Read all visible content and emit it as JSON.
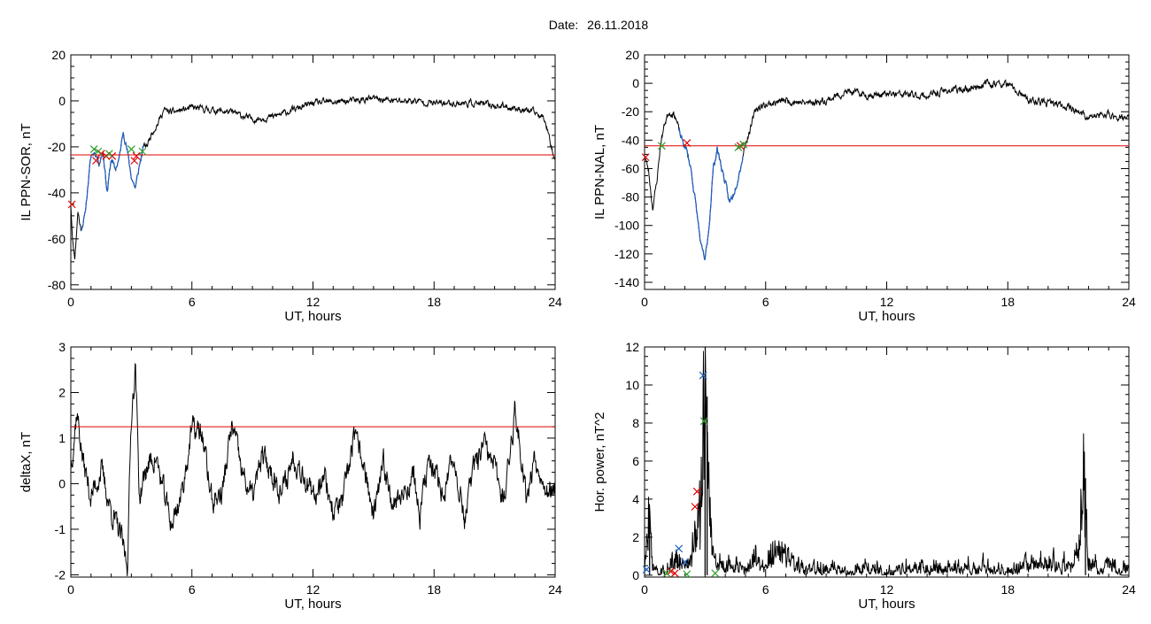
{
  "header": {
    "date_label": "Date:",
    "date_value": "26.11.2018"
  },
  "colors": {
    "trace": "#000000",
    "active_trace": "#1f5fbf",
    "threshold": "#e00000",
    "marker_red": "#e00000",
    "marker_green": "#2ca02c",
    "marker_blue": "#1f5fbf"
  },
  "chart_data": [
    {
      "id": "sor",
      "type": "line",
      "xlabel": "UT, hours",
      "ylabel": "IL PPN-SOR, nT",
      "xlim": [
        0,
        24
      ],
      "ylim": [
        -82,
        20
      ],
      "xticks": [
        0,
        6,
        12,
        18,
        24
      ],
      "yticks": [
        -80,
        -60,
        -40,
        -20,
        0,
        20
      ],
      "threshold": -23.5,
      "trace_keypoints": [
        [
          0,
          -45
        ],
        [
          0.1,
          -62
        ],
        [
          0.2,
          -68
        ],
        [
          0.35,
          -48
        ],
        [
          0.5,
          -56
        ],
        [
          0.7,
          -50
        ],
        [
          0.9,
          -32
        ],
        [
          1.0,
          -24
        ],
        [
          1.2,
          -22
        ],
        [
          1.4,
          -27
        ],
        [
          1.6,
          -22
        ],
        [
          1.8,
          -40
        ],
        [
          2.0,
          -25
        ],
        [
          2.2,
          -30
        ],
        [
          2.4,
          -25
        ],
        [
          2.6,
          -13
        ],
        [
          2.8,
          -22
        ],
        [
          3.0,
          -33
        ],
        [
          3.2,
          -38
        ],
        [
          3.4,
          -28
        ],
        [
          3.6,
          -20
        ],
        [
          3.8,
          -19
        ],
        [
          4.0,
          -14
        ],
        [
          4.3,
          -10
        ],
        [
          4.6,
          -4
        ],
        [
          5.0,
          -5
        ],
        [
          6.0,
          -3
        ],
        [
          7.0,
          -4
        ],
        [
          8.0,
          -5
        ],
        [
          9.0,
          -8
        ],
        [
          10.0,
          -7
        ],
        [
          11.0,
          -4
        ],
        [
          12.0,
          -1
        ],
        [
          13.0,
          -0.5
        ],
        [
          14.0,
          0
        ],
        [
          15.0,
          1
        ],
        [
          16.0,
          0
        ],
        [
          17.0,
          0
        ],
        [
          18.0,
          -1
        ],
        [
          19.0,
          -1
        ],
        [
          20.0,
          -1
        ],
        [
          21.0,
          -2
        ],
        [
          22.0,
          -3
        ],
        [
          23.0,
          -5
        ],
        [
          23.5,
          -8
        ],
        [
          24.0,
          -26
        ]
      ],
      "active_range": [
        0.5,
        3.6
      ],
      "markers": [
        {
          "x": 1.25,
          "y": -26,
          "color": "red"
        },
        {
          "x": 1.5,
          "y": -23,
          "color": "red"
        },
        {
          "x": 1.75,
          "y": -24,
          "color": "red"
        },
        {
          "x": 2.05,
          "y": -24,
          "color": "red"
        },
        {
          "x": 3.15,
          "y": -26,
          "color": "red"
        },
        {
          "x": 3.25,
          "y": -24,
          "color": "red"
        },
        {
          "x": 1.15,
          "y": -21,
          "color": "green"
        },
        {
          "x": 1.35,
          "y": -22,
          "color": "green"
        },
        {
          "x": 1.9,
          "y": -23,
          "color": "green"
        },
        {
          "x": 3.0,
          "y": -21,
          "color": "green"
        },
        {
          "x": 3.55,
          "y": -22,
          "color": "green"
        },
        {
          "x": 0.05,
          "y": -45,
          "color": "red"
        }
      ],
      "seed": 11,
      "noise": 1.1
    },
    {
      "id": "nal",
      "type": "line",
      "xlabel": "UT, hours",
      "ylabel": "IL PPN-NAL, nT",
      "xlim": [
        0,
        24
      ],
      "ylim": [
        -145,
        20
      ],
      "xticks": [
        0,
        6,
        12,
        18,
        24
      ],
      "yticks": [
        -140,
        -120,
        -100,
        -80,
        -60,
        -40,
        -20,
        0,
        20
      ],
      "threshold": -44,
      "trace_keypoints": [
        [
          0,
          -50
        ],
        [
          0.2,
          -62
        ],
        [
          0.4,
          -88
        ],
        [
          0.6,
          -70
        ],
        [
          0.8,
          -42
        ],
        [
          1.0,
          -28
        ],
        [
          1.2,
          -20
        ],
        [
          1.5,
          -22
        ],
        [
          1.8,
          -38
        ],
        [
          2.1,
          -48
        ],
        [
          2.3,
          -60
        ],
        [
          2.6,
          -92
        ],
        [
          2.8,
          -115
        ],
        [
          3.0,
          -125
        ],
        [
          3.2,
          -100
        ],
        [
          3.4,
          -60
        ],
        [
          3.6,
          -46
        ],
        [
          3.8,
          -58
        ],
        [
          4.0,
          -70
        ],
        [
          4.2,
          -84
        ],
        [
          4.4,
          -78
        ],
        [
          4.6,
          -68
        ],
        [
          4.8,
          -56
        ],
        [
          5.0,
          -42
        ],
        [
          5.3,
          -30
        ],
        [
          5.5,
          -18
        ],
        [
          6.0,
          -15
        ],
        [
          7.0,
          -12
        ],
        [
          8.0,
          -14
        ],
        [
          9.0,
          -12
        ],
        [
          10.0,
          -6
        ],
        [
          11.0,
          -8
        ],
        [
          12.0,
          -8
        ],
        [
          13.0,
          -8
        ],
        [
          14.0,
          -9
        ],
        [
          15.0,
          -5
        ],
        [
          16.0,
          -4
        ],
        [
          17.0,
          0
        ],
        [
          18.0,
          -1
        ],
        [
          19.0,
          -12
        ],
        [
          20.0,
          -14
        ],
        [
          21.0,
          -16
        ],
        [
          22.0,
          -24
        ],
        [
          23.0,
          -22
        ],
        [
          24.0,
          -25
        ]
      ],
      "active_range": [
        1.7,
        4.9
      ],
      "markers": [
        {
          "x": 2.1,
          "y": -42,
          "color": "red"
        },
        {
          "x": 4.75,
          "y": -44,
          "color": "red"
        },
        {
          "x": 0.05,
          "y": -52,
          "color": "red"
        },
        {
          "x": 0.85,
          "y": -44,
          "color": "green"
        },
        {
          "x": 4.65,
          "y": -45,
          "color": "green"
        },
        {
          "x": 4.9,
          "y": -43,
          "color": "green"
        }
      ],
      "seed": 23,
      "noise": 2.0
    },
    {
      "id": "deltax",
      "type": "line",
      "xlabel": "UT, hours",
      "ylabel": "deltaX, nT",
      "xlim": [
        0,
        24
      ],
      "ylim": [
        -2.05,
        3.0
      ],
      "xticks": [
        0,
        6,
        12,
        18,
        24
      ],
      "yticks": [
        -2,
        -1,
        0,
        1,
        2,
        3
      ],
      "threshold": 1.25,
      "trace_keypoints": [
        [
          0,
          0.4
        ],
        [
          0.3,
          1.6
        ],
        [
          0.6,
          0.5
        ],
        [
          1.0,
          -0.3
        ],
        [
          1.5,
          0.3
        ],
        [
          2.0,
          -0.6
        ],
        [
          2.5,
          -1.2
        ],
        [
          2.8,
          -1.8
        ],
        [
          3.0,
          1.5
        ],
        [
          3.2,
          2.6
        ],
        [
          3.4,
          -0.3
        ],
        [
          3.8,
          0.4
        ],
        [
          4.2,
          0.6
        ],
        [
          4.6,
          -0.2
        ],
        [
          5.0,
          -0.9
        ],
        [
          5.5,
          -0.2
        ],
        [
          6.0,
          1.2
        ],
        [
          6.5,
          1.1
        ],
        [
          7.0,
          -0.4
        ],
        [
          7.5,
          -0.2
        ],
        [
          8.0,
          1.3
        ],
        [
          8.5,
          0.2
        ],
        [
          9.0,
          -0.3
        ],
        [
          9.5,
          0.6
        ],
        [
          10.0,
          0.2
        ],
        [
          10.5,
          -0.2
        ],
        [
          11.0,
          0.6
        ],
        [
          11.5,
          0.3
        ],
        [
          12.0,
          -0.4
        ],
        [
          12.5,
          0.3
        ],
        [
          13.0,
          -0.6
        ],
        [
          13.5,
          -0.4
        ],
        [
          14.0,
          1.0
        ],
        [
          14.5,
          0.5
        ],
        [
          15.0,
          -0.8
        ],
        [
          15.5,
          0.4
        ],
        [
          16.0,
          -0.4
        ],
        [
          16.5,
          -0.2
        ],
        [
          17.0,
          0.2
        ],
        [
          17.3,
          -0.8
        ],
        [
          17.7,
          0.5
        ],
        [
          18.0,
          0.2
        ],
        [
          18.5,
          -0.2
        ],
        [
          19.0,
          0.6
        ],
        [
          19.5,
          -0.8
        ],
        [
          20.0,
          0.4
        ],
        [
          20.5,
          0.8
        ],
        [
          21.0,
          0.3
        ],
        [
          21.5,
          -0.3
        ],
        [
          22.0,
          1.6
        ],
        [
          22.3,
          0.7
        ],
        [
          22.6,
          -0.3
        ],
        [
          23.0,
          0.6
        ],
        [
          23.5,
          0.0
        ],
        [
          24.0,
          -0.3
        ]
      ],
      "active_range": null,
      "markers": [],
      "seed": 37,
      "noise": 0.22
    },
    {
      "id": "power",
      "type": "line",
      "xlabel": "UT, hours",
      "ylabel": "Hor. power, nT^2",
      "xlim": [
        0,
        24
      ],
      "ylim": [
        -0.1,
        12
      ],
      "xticks": [
        0,
        6,
        12,
        18,
        24
      ],
      "yticks": [
        0,
        2,
        4,
        6,
        8,
        10,
        12
      ],
      "threshold": null,
      "trace_keypoints": [
        [
          0,
          0.3
        ],
        [
          0.2,
          2.8
        ],
        [
          0.4,
          0.6
        ],
        [
          0.8,
          0.1
        ],
        [
          1.2,
          0.2
        ],
        [
          1.6,
          0.8
        ],
        [
          2.0,
          0.4
        ],
        [
          2.3,
          0.9
        ],
        [
          2.6,
          3.0
        ],
        [
          2.8,
          3.8
        ],
        [
          3.0,
          10.4
        ],
        [
          3.2,
          4.5
        ],
        [
          3.4,
          0.9
        ],
        [
          3.7,
          0.6
        ],
        [
          4.0,
          0.4
        ],
        [
          4.5,
          0.6
        ],
        [
          5.0,
          0.3
        ],
        [
          5.5,
          0.8
        ],
        [
          6.0,
          0.5
        ],
        [
          6.5,
          1.4
        ],
        [
          7.0,
          1.0
        ],
        [
          7.5,
          0.4
        ],
        [
          8.0,
          0.2
        ],
        [
          9.0,
          0.3
        ],
        [
          10.0,
          0.2
        ],
        [
          11.0,
          0.4
        ],
        [
          12.0,
          0.2
        ],
        [
          13.0,
          0.4
        ],
        [
          14.0,
          0.3
        ],
        [
          15.0,
          0.4
        ],
        [
          16.0,
          0.3
        ],
        [
          17.0,
          0.4
        ],
        [
          18.0,
          0.2
        ],
        [
          19.0,
          0.5
        ],
        [
          20.0,
          0.6
        ],
        [
          21.0,
          0.3
        ],
        [
          21.5,
          1.2
        ],
        [
          21.8,
          5.1
        ],
        [
          22.0,
          0.6
        ],
        [
          22.5,
          0.3
        ],
        [
          23.0,
          0.4
        ],
        [
          24.0,
          0.2
        ]
      ],
      "active_range": null,
      "spikes": [
        [
          0.25,
          3.0
        ],
        [
          3.0,
          10.4
        ],
        [
          3.1,
          9.4
        ],
        [
          21.85,
          5.1
        ]
      ],
      "markers": [
        {
          "x": 2.9,
          "y": 10.5,
          "color": "blue"
        },
        {
          "x": 2.95,
          "y": 8.1,
          "color": "green"
        },
        {
          "x": 2.6,
          "y": 4.4,
          "color": "red"
        },
        {
          "x": 2.5,
          "y": 3.6,
          "color": "red"
        },
        {
          "x": 1.7,
          "y": 1.4,
          "color": "blue"
        },
        {
          "x": 2.0,
          "y": 0.7,
          "color": "blue"
        },
        {
          "x": 1.3,
          "y": 0.2,
          "color": "red"
        },
        {
          "x": 1.5,
          "y": 0.1,
          "color": "red"
        },
        {
          "x": 1.1,
          "y": 0.1,
          "color": "green"
        },
        {
          "x": 2.1,
          "y": 0.05,
          "color": "green"
        },
        {
          "x": 3.5,
          "y": 0.1,
          "color": "green"
        },
        {
          "x": 0.1,
          "y": 0.3,
          "color": "blue"
        }
      ],
      "seed": 51,
      "noise": 0.25
    }
  ]
}
